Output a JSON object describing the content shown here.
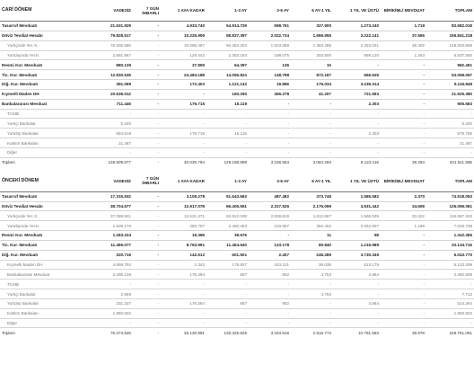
{
  "sections": [
    {
      "headers": [
        "CARİ DÖNEM",
        "VADESİZ",
        "7 GÜN İHBARLI",
        "1 AYA KADAR",
        "1-3 AY",
        "3-6 AY",
        "6 AY-1 YIL",
        "1 YIL VE ÜSTÜ",
        "BİRİKİMLİ MEVDUAT",
        "TOPLAM"
      ],
      "rows": [
        {
          "label": "Tasarruf Mevduatı",
          "style": "bold",
          "values": [
            "21.631.929",
            "-",
            "4.933.740",
            "54.914.729",
            "598.761",
            "327.900",
            "1.273.240",
            "1.719",
            "83.682.018"
          ]
        },
        {
          "label": "Döviz Tevdiat Hesabı",
          "style": "bold",
          "values": [
            "79.828.517",
            "-",
            "10.225.909",
            "58.837.397",
            "2.022.734",
            "1.666.955",
            "3.222.141",
            "37.565",
            "155.841.218"
          ]
        },
        {
          "label": "Yurtiçinde Yer. K.",
          "style": "sub",
          "values": [
            "76.936.560",
            "-",
            "10.096.467",
            "56.484.204",
            "1.823.659",
            "1.363.455",
            "2.263.021",
            "36.302",
            "149.003.668"
          ]
        },
        {
          "label": "Yurtdışında Yer.K.",
          "style": "sub",
          "values": [
            "2.891.957",
            "-",
            "129.442",
            "2.353.193",
            "199.075",
            "303.500",
            "959.120",
            "1.263",
            "6.837.550"
          ]
        },
        {
          "label": "Resmi Kur. Mevduatı",
          "style": "bold",
          "values": [
            "880.139",
            "-",
            "37.809",
            "64.397",
            "136",
            "10",
            "-",
            "-",
            "982.491"
          ]
        },
        {
          "label": "Tic. Kur. Mevduatı",
          "style": "bold",
          "values": [
            "12.830.535",
            "-",
            "24.484.188",
            "14.055.824",
            "148.798",
            "872.187",
            "666.525",
            "-",
            "53.058.057"
          ]
        },
        {
          "label": "Diğ. Kur. Mevduatı",
          "style": "bold",
          "values": [
            "391.099",
            "-",
            "172.403",
            "1.121.142",
            "19.856",
            "176.034",
            "3.236.314",
            "-",
            "5.116.848"
          ]
        },
        {
          "label": "Kıymetli Maden DH",
          "style": "bold",
          "values": [
            "20.636.012",
            "-",
            "-",
            "160.290",
            "366.278",
            "41.207",
            "721.593",
            "-",
            "21.925.380"
          ]
        },
        {
          "label": "Bankalararası Mevduat",
          "style": "bold",
          "values": [
            "711.446",
            "-",
            "176.715",
            "15.119",
            "-",
            "-",
            "2.303",
            "-",
            "905.583"
          ]
        },
        {
          "label": "TCMB",
          "style": "sub",
          "values": [
            "-",
            "-",
            "-",
            "-",
            "-",
            "-",
            "-",
            "-",
            "-"
          ]
        },
        {
          "label": "Yurtiçi Bankalar",
          "style": "sub",
          "values": [
            "5.340",
            "-",
            "-",
            "-",
            "-",
            "-",
            "-",
            "-",
            "5.340"
          ]
        },
        {
          "label": "Yurtdışı Bankalar",
          "style": "sub",
          "values": [
            "684.619",
            "-",
            "176.715",
            "15.119",
            "-",
            "-",
            "2.303",
            "-",
            "878.756"
          ]
        },
        {
          "label": "Katılım Bankaları",
          "style": "sub",
          "values": [
            "21.487",
            "-",
            "-",
            "-",
            "-",
            "-",
            "-",
            "-",
            "21.487"
          ]
        },
        {
          "label": "Diğer",
          "style": "sub",
          "values": [
            "-",
            "-",
            "-",
            "-",
            "-",
            "-",
            "-",
            "-",
            "-"
          ]
        },
        {
          "label": "Toplam",
          "style": "total",
          "values": [
            "136.909.677",
            "-",
            "40.030.764",
            "129.168.898",
            "3.156.563",
            "3.084.293",
            "9.122.116",
            "39.284",
            "321.511.595"
          ]
        }
      ]
    },
    {
      "headers": [
        "ÖNCEKİ DÖNEM",
        "VADESİZ",
        "7 GÜN İHBARLI",
        "1 AYA KADAR",
        "1-3 AY",
        "3-6 AY",
        "6 AY-1 YIL",
        "1 YIL VE ÜSTÜ",
        "BİRİKİMLİ MEVDUAT",
        "TOPLAM"
      ],
      "rows": [
        {
          "label": "Tasarruf Mevduatı",
          "style": "bold",
          "values": [
            "17.315.932",
            "-",
            "3.109.278",
            "51.643.663",
            "487.482",
            "373.746",
            "1.585.582",
            "2.370",
            "74.518.053"
          ]
        },
        {
          "label": "Döviz Tevdiat Hesabı",
          "style": "bold",
          "values": [
            "38.704.677",
            "-",
            "12.917.078",
            "66.405.651",
            "2.227.526",
            "2.175.099",
            "3.631.442",
            "34.608",
            "126.096.081"
          ]
        },
        {
          "label": "Yurtiçinde Yer. K.",
          "style": "sub",
          "values": [
            "37.099.501",
            "-",
            "12.631.371",
            "63.913.198",
            "2.008.619",
            "1.812.697",
            "1.568.535",
            "33.422",
            "119.067.343"
          ]
        },
        {
          "label": "Yurtdışında Yer.K.",
          "style": "sub",
          "values": [
            "1.605.176",
            "-",
            "285.707",
            "2.492.453",
            "218.907",
            "362.402",
            "2.062.907",
            "1.186",
            "7.028.738"
          ]
        },
        {
          "label": "Resmi Kur. Mevduatı",
          "style": "bold",
          "values": [
            "1.283.224",
            "-",
            "19.396",
            "39.676",
            "-",
            "11",
            "58",
            "-",
            "1.342.365"
          ]
        },
        {
          "label": "Tic. Kur. Mevduatı",
          "style": "bold",
          "values": [
            "11.496.077",
            "-",
            "8.763.991",
            "11.454.640",
            "123.178",
            "80.840",
            "1.215.989",
            "-",
            "33.134.715"
          ]
        },
        {
          "label": "Diğ. Kur. Mevduatı",
          "style": "bold",
          "values": [
            "320.716",
            "-",
            "142.512",
            "601.501",
            "2.407",
            "246.285",
            "3.730.349",
            "-",
            "5.043.770"
          ]
        },
        {
          "label": "Kıymetli Maden DH",
          "style": "sub",
          "values": [
            "4.958.792",
            "-",
            "2.342",
            "179.827",
            "343.121",
            "36.038",
            "613.179",
            "-",
            "6.133.299"
          ]
        },
        {
          "label": "Bankalararası Mevduat",
          "style": "sub",
          "values": [
            "2.295.128",
            "-",
            "176.394",
            "667",
            "902",
            "4.753",
            "4.964",
            "-",
            "2.482.808"
          ]
        },
        {
          "label": "TCMB",
          "style": "sub",
          "values": [
            "-",
            "-",
            "-",
            "-",
            "-",
            "-",
            "-",
            "-",
            "-"
          ]
        },
        {
          "label": "Yurtiçi Bankalar",
          "style": "sub",
          "values": [
            "2.959",
            "-",
            "-",
            "-",
            "-",
            "4.753",
            "-",
            "-",
            "7.712"
          ]
        },
        {
          "label": "Yurtdışı Bankalar",
          "style": "sub",
          "values": [
            "331.337",
            "-",
            "176.394",
            "667",
            "902",
            "-",
            "4.964",
            "-",
            "514.264"
          ]
        },
        {
          "label": "Katılım Bankaları",
          "style": "sub",
          "values": [
            "1.960.832",
            "-",
            "-",
            "-",
            "-",
            "-",
            "-",
            "-",
            "1.960.832"
          ]
        },
        {
          "label": "Diğer",
          "style": "sub",
          "values": [
            "-",
            "-",
            "-",
            "-",
            "-",
            "-",
            "-",
            "-",
            "-"
          ]
        },
        {
          "label": "Toplam",
          "style": "total",
          "values": [
            "76.374.546",
            "-",
            "25.130.991",
            "130.325.625",
            "3.184.616",
            "2.916.772",
            "10.781.563",
            "36.978",
            "248.751.091"
          ]
        }
      ]
    }
  ]
}
